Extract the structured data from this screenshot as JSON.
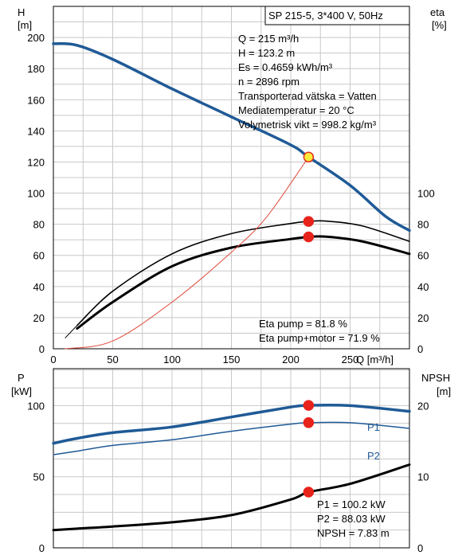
{
  "chart_data": [
    {
      "type": "line",
      "title": "SP 215-5, 3*400 V, 50Hz",
      "xlabel": "Q [m³/h]",
      "x_ticks": [
        "0",
        "50",
        "100",
        "150",
        "200",
        "250"
      ],
      "xlim": [
        0,
        300
      ],
      "y_left": {
        "label_top": "H",
        "label_unit": "[m]",
        "ylim": [
          0,
          220
        ],
        "ticks": [
          "0",
          "20",
          "40",
          "60",
          "80",
          "100",
          "120",
          "140",
          "160",
          "180",
          "200"
        ]
      },
      "y_right": {
        "label_top": "eta",
        "label_unit": "[%]",
        "ylim": [
          0,
          220
        ],
        "ticks": [
          "0",
          "20",
          "40",
          "60",
          "80",
          "100"
        ]
      },
      "grid": true,
      "info_lines": [
        "Q = 215 m³/h",
        "H = 123.2 m",
        "Es = 0.4659 kWh/m³",
        "n = 2896 rpm",
        "Transporterad vätska = Vatten",
        "Mediatemperatur = 20 °C",
        "Volymetrisk vikt = 998.2 kg/m³"
      ],
      "eta_lines": [
        "Eta pump = 81.8 %",
        "Eta pump+motor = 71.9 %"
      ],
      "series": [
        {
          "key": "H",
          "color": "#1f5a96",
          "width": 3.5,
          "x": [
            0,
            20,
            50,
            100,
            150,
            200,
            215,
            250,
            280,
            300
          ],
          "y": [
            196,
            195,
            186,
            167,
            149,
            131,
            123.2,
            105,
            85,
            76
          ]
        },
        {
          "key": "eta_pump",
          "color": "#000000",
          "width": 1.6,
          "x": [
            20,
            50,
            100,
            150,
            200,
            215,
            230,
            260,
            300
          ],
          "y": [
            15,
            37,
            61,
            74,
            80.5,
            81.8,
            82,
            79,
            69
          ]
        },
        {
          "key": "eta_pump_motor",
          "color": "#000000",
          "width": 3,
          "x": [
            20,
            50,
            100,
            150,
            200,
            215,
            230,
            260,
            300
          ],
          "y": [
            13,
            30,
            53,
            65,
            70.5,
            71.9,
            72,
            69,
            61
          ]
        },
        {
          "key": "eta_low",
          "color": "#000000",
          "width": 1,
          "x": [
            10,
            20
          ],
          "y": [
            7,
            15
          ]
        },
        {
          "key": "system_curve",
          "color": "#e04b3c",
          "width": 1,
          "x": [
            10,
            50,
            100,
            150,
            180,
            215
          ],
          "y": [
            0,
            5,
            30,
            62,
            85,
            123.2
          ]
        }
      ],
      "markers": [
        {
          "x": 215,
          "y": 123.2,
          "fill": "#ffeb3b",
          "stroke": "#e03020"
        },
        {
          "x": 215,
          "y": 81.8,
          "fill": "#e8231c",
          "stroke": "#e8231c"
        },
        {
          "x": 215,
          "y": 71.9,
          "fill": "#e8231c",
          "stroke": "#e8231c"
        }
      ]
    },
    {
      "type": "line",
      "xlim": [
        0,
        300
      ],
      "y_left": {
        "label_top": "P",
        "label_unit": "[kW]",
        "ylim": [
          0,
          126
        ],
        "ticks": [
          "0",
          "50",
          "100"
        ]
      },
      "y_right": {
        "label_top": "NPSH",
        "label_unit": "[m]",
        "ylim": [
          0,
          25.2
        ],
        "ticks": [
          "0",
          "10",
          "20"
        ]
      },
      "grid": true,
      "info_lines": [
        "P1 = 100.2 kW",
        "P2 = 88.03 kW",
        "NPSH = 7.83 m"
      ],
      "series": [
        {
          "key": "P1",
          "name": "P1",
          "color": "#1f5a96",
          "width": 3.5,
          "x": [
            0,
            20,
            50,
            100,
            150,
            200,
            215,
            250,
            300
          ],
          "y": [
            73.5,
            77,
            81,
            85,
            92,
            99,
            100.2,
            100,
            96
          ]
        },
        {
          "key": "P2",
          "name": "P2",
          "color": "#1f5a96",
          "width": 1.5,
          "x": [
            0,
            20,
            50,
            100,
            150,
            200,
            215,
            250,
            300
          ],
          "y": [
            65.5,
            68,
            72,
            76,
            82,
            87,
            88,
            88,
            84
          ]
        },
        {
          "key": "NPSH",
          "color": "#000000",
          "width": 3,
          "axis": "right",
          "x": [
            0,
            20,
            50,
            100,
            150,
            200,
            215,
            250,
            300
          ],
          "y": [
            2.5,
            2.7,
            3.0,
            3.6,
            4.6,
            6.8,
            7.83,
            9.0,
            11.7
          ]
        }
      ],
      "markers": [
        {
          "x": 215,
          "y": 100.2,
          "fill": "#e8231c",
          "stroke": "#e8231c"
        },
        {
          "x": 215,
          "y": 88.03,
          "fill": "#e8231c",
          "stroke": "#e8231c"
        },
        {
          "x": 215,
          "y": 39.2,
          "fill": "#e8231c",
          "stroke": "#e8231c"
        }
      ]
    }
  ]
}
